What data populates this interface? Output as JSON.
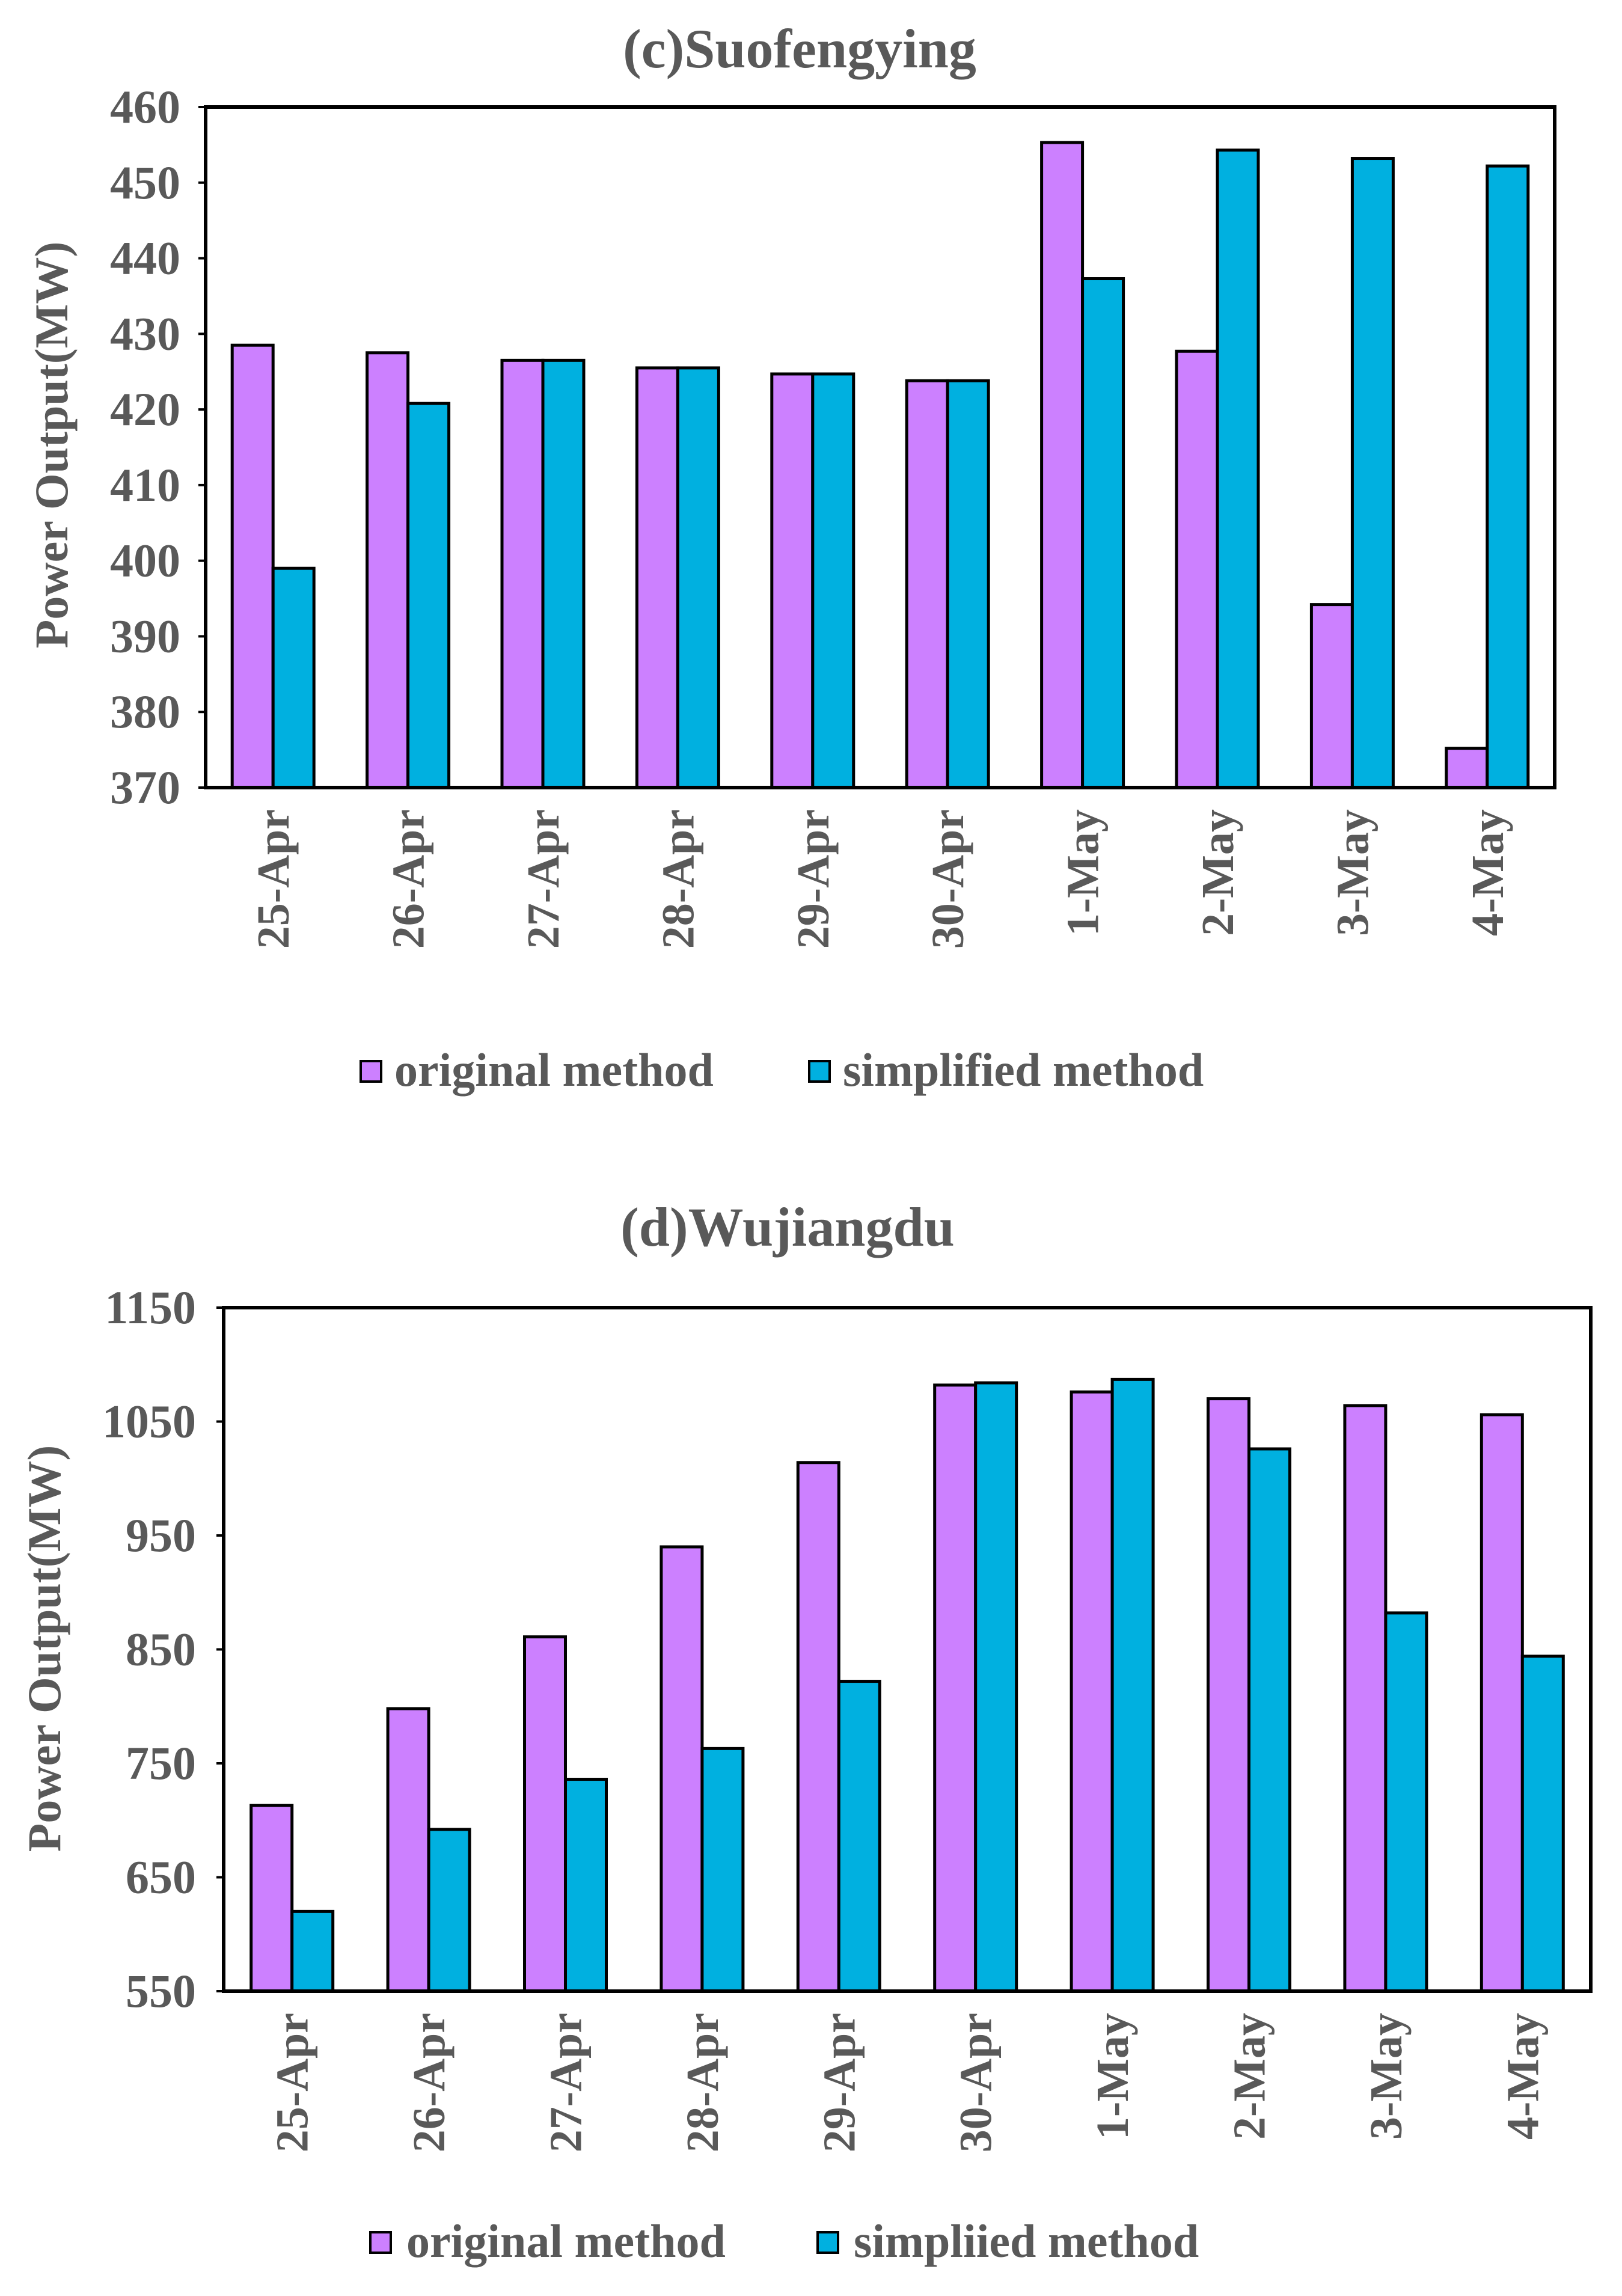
{
  "chart_data": [
    {
      "type": "bar",
      "title": "(c)Suofengying",
      "ylabel": "Power Output(MW)",
      "xlabel": "",
      "ylim": [
        370,
        460
      ],
      "yticks": [
        370,
        380,
        390,
        400,
        410,
        420,
        430,
        440,
        450,
        460
      ],
      "categories": [
        "25-Apr",
        "26-Apr",
        "27-Apr",
        "28-Apr",
        "29-Apr",
        "30-Apr",
        "1-May",
        "2-May",
        "3-May",
        "4-May"
      ],
      "series": [
        {
          "name": "original method",
          "color": "#cc80ff",
          "values": [
            428.5,
            427.5,
            426.5,
            425.5,
            424.7,
            423.8,
            455.3,
            427.7,
            394.2,
            375.2
          ]
        },
        {
          "name": "simplified method",
          "color": "#00b0e0",
          "values": [
            399.0,
            420.8,
            426.5,
            425.5,
            424.7,
            423.8,
            437.3,
            454.3,
            453.2,
            452.2
          ]
        }
      ],
      "legend": [
        "original method",
        "simplified method"
      ],
      "grid": false
    },
    {
      "type": "bar",
      "title": "(d)Wujiangdu",
      "ylabel": "Power Output(MW)",
      "xlabel": "",
      "ylim": [
        550,
        1150
      ],
      "yticks": [
        550,
        650,
        750,
        850,
        950,
        1050,
        1150
      ],
      "categories": [
        "25-Apr",
        "26-Apr",
        "27-Apr",
        "28-Apr",
        "29-Apr",
        "30-Apr",
        "1-May",
        "2-May",
        "3-May",
        "4-May"
      ],
      "series": [
        {
          "name": "original method",
          "color": "#cc80ff",
          "values": [
            713,
            798,
            861,
            940,
            1014,
            1082,
            1076,
            1070,
            1064,
            1056
          ]
        },
        {
          "name": "simpliied method",
          "color": "#00b0e0",
          "values": [
            620,
            692,
            736,
            763,
            822,
            1084,
            1087,
            1026,
            882,
            844
          ]
        }
      ],
      "legend": [
        "original method",
        "simpliied method"
      ],
      "grid": false
    }
  ]
}
